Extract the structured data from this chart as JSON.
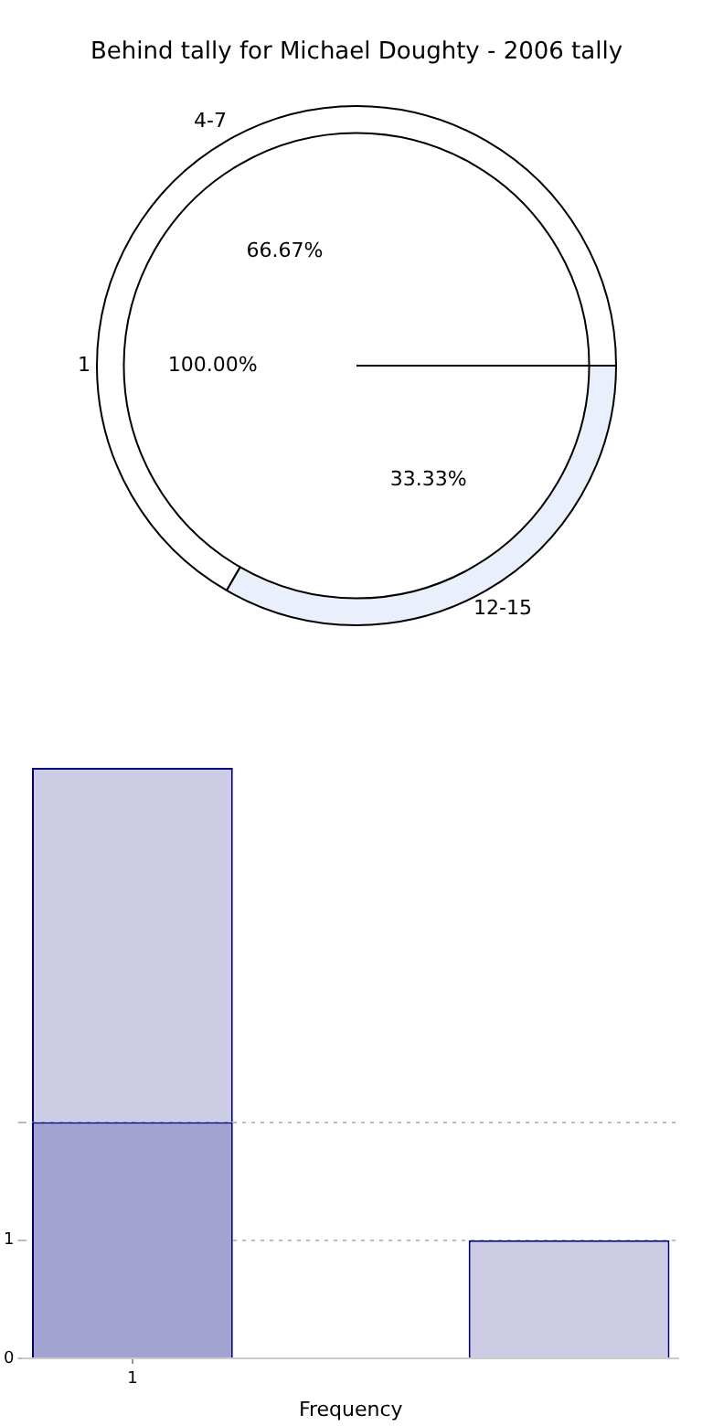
{
  "chart_data": [
    {
      "type": "pie",
      "title": "Behind tally for Michael Doughty - 2006 tally",
      "categories": [
        "1"
      ],
      "values": [
        100
      ],
      "colors": [
        "#ffffff"
      ],
      "value_labels": [
        "100.00%"
      ]
    },
    {
      "type": "donut",
      "categories": [
        "4-7",
        "12-15"
      ],
      "values": [
        66.67,
        33.33
      ],
      "colors": [
        "#ffffff",
        "#eaf0fb"
      ],
      "value_labels": [
        "66.67%",
        "33.33%"
      ]
    },
    {
      "type": "bar",
      "xlabel": "Frequency",
      "categories": [
        "1",
        null,
        null
      ],
      "stacked": true,
      "ylim": [
        0,
        5
      ],
      "yticks": [
        0,
        1,
        {
          "value": 2,
          "label": null
        }
      ],
      "grid": true,
      "legend": false,
      "series": [
        {
          "color": "#a3a3d1",
          "values": [
            2,
            null,
            null
          ]
        },
        {
          "color": "#ccccE4",
          "values": [
            3,
            null,
            1
          ]
        }
      ]
    }
  ]
}
